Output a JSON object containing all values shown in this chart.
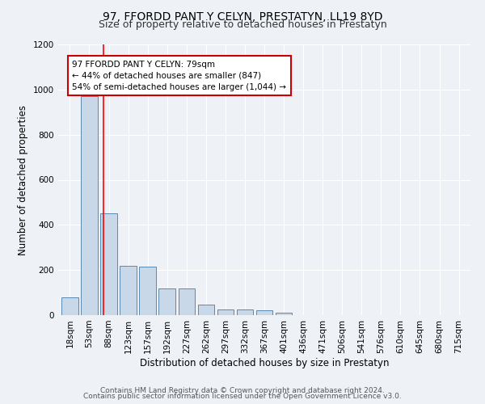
{
  "title": "97, FFORDD PANT Y CELYN, PRESTATYN, LL19 8YD",
  "subtitle": "Size of property relative to detached houses in Prestatyn",
  "xlabel": "Distribution of detached houses by size in Prestatyn",
  "ylabel": "Number of detached properties",
  "bar_values": [
    80,
    970,
    450,
    220,
    215,
    120,
    120,
    45,
    25,
    25,
    20,
    10,
    0,
    0,
    0,
    0,
    0,
    0,
    0,
    0,
    0
  ],
  "categories": [
    "18sqm",
    "53sqm",
    "88sqm",
    "123sqm",
    "157sqm",
    "192sqm",
    "227sqm",
    "262sqm",
    "297sqm",
    "332sqm",
    "367sqm",
    "401sqm",
    "436sqm",
    "471sqm",
    "506sqm",
    "541sqm",
    "576sqm",
    "610sqm",
    "645sqm",
    "680sqm",
    "715sqm"
  ],
  "bar_color": "#c8d8e8",
  "bar_edge_color": "#5a8ab0",
  "red_line_x": 1.72,
  "ylim": [
    0,
    1200
  ],
  "yticks": [
    0,
    200,
    400,
    600,
    800,
    1000,
    1200
  ],
  "annotation_text": "97 FFORDD PANT Y CELYN: 79sqm\n← 44% of detached houses are smaller (847)\n54% of semi-detached houses are larger (1,044) →",
  "annotation_box_color": "#ffffff",
  "annotation_box_edge": "#cc0000",
  "footer_line1": "Contains HM Land Registry data © Crown copyright and database right 2024.",
  "footer_line2": "Contains public sector information licensed under the Open Government Licence v3.0.",
  "background_color": "#eef2f7",
  "grid_color": "#ffffff",
  "title_fontsize": 10,
  "subtitle_fontsize": 9,
  "axis_label_fontsize": 8.5,
  "tick_fontsize": 7.5,
  "footer_fontsize": 6.5
}
